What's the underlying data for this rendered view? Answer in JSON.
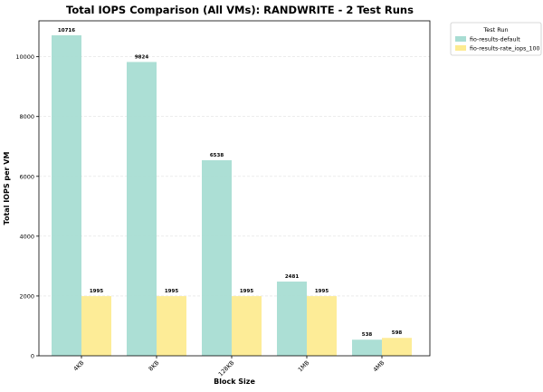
{
  "chart_data": {
    "type": "bar",
    "title": "Total IOPS Comparison (All VMs): RANDWRITE - 2 Test Runs",
    "xlabel": "Block Size",
    "ylabel": "Total IOPS per VM",
    "categories": [
      "4KB",
      "8KB",
      "128KB",
      "1MB",
      "4MB"
    ],
    "series": [
      {
        "name": "fio-results-default",
        "values": [
          10716,
          9824,
          6538,
          2481,
          538
        ],
        "color": "#a8ddd3"
      },
      {
        "name": "fio-results-rate_iops_100",
        "values": [
          1995,
          1995,
          1995,
          1995,
          598
        ],
        "color": "#fdeb91"
      }
    ],
    "ylim": [
      0,
      11200
    ],
    "yticks": [
      0,
      2000,
      4000,
      6000,
      8000,
      10000
    ],
    "grid": true,
    "legend": {
      "title": "Test Run",
      "placement": "outside-top-right"
    }
  }
}
